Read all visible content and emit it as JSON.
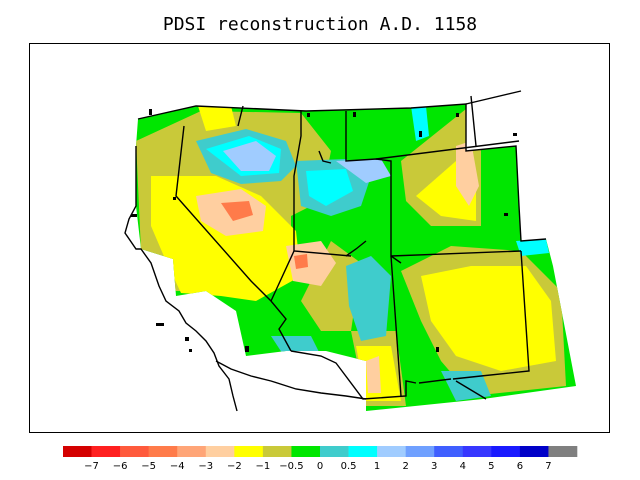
{
  "title": "PDSI reconstruction A.D. 1158",
  "legend": {
    "colors": [
      "#d40000",
      "#ff2020",
      "#ff5a3c",
      "#ff7b4a",
      "#ffa577",
      "#ffcfa0",
      "#ffff00",
      "#c9c939",
      "#00e600",
      "#3fcccc",
      "#00ffff",
      "#a0ccff",
      "#6fa0ff",
      "#3f5fff",
      "#3737ff",
      "#1a1aff",
      "#0000c8",
      "#7f7f7f"
    ],
    "labels": [
      "−7",
      "−6",
      "−5",
      "−4",
      "−3",
      "−2",
      "−1",
      "−0.5",
      "0",
      "0.5",
      "1",
      "2",
      "3",
      "4",
      "5",
      "6",
      "7"
    ]
  }
}
